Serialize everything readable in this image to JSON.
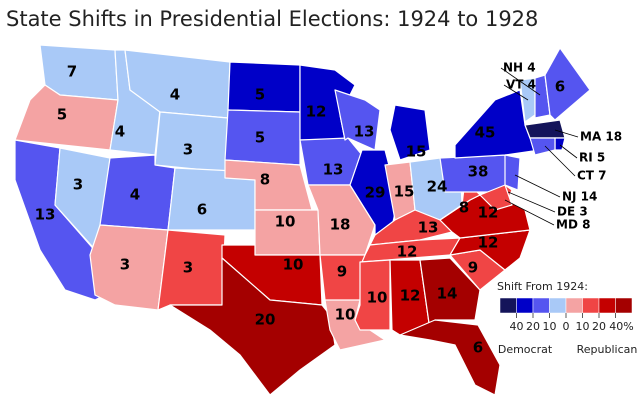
{
  "title": "State Shifts in Presidential Elections: 1924 to 1928",
  "regions": [
    {
      "label": "7",
      "color": "#a9c9f7"
    },
    {
      "label": "5",
      "color": "#f4a3a3"
    },
    {
      "label": "13",
      "color": "#5555f0"
    },
    {
      "label": "3",
      "color": "#a9c9f7"
    },
    {
      "label": "4",
      "color": "#a9c9f7"
    },
    {
      "label": "4",
      "color": "#a9c9f7"
    },
    {
      "label": "3",
      "color": "#a9c9f7"
    },
    {
      "label": "4",
      "color": "#5555f0"
    },
    {
      "label": "6",
      "color": "#a9c9f7"
    },
    {
      "label": "3",
      "color": "#f4a3a3"
    },
    {
      "label": "3",
      "color": "#f04545"
    },
    {
      "label": "5",
      "color": "#0000c8"
    },
    {
      "label": "5",
      "color": "#5555f0"
    },
    {
      "label": "8",
      "color": "#f4a3a3"
    },
    {
      "label": "10",
      "color": "#f4a3a3"
    },
    {
      "label": "10",
      "color": "#c40000"
    },
    {
      "label": "20",
      "color": "#a40000"
    },
    {
      "label": "12",
      "color": "#0000c8"
    },
    {
      "label": "13",
      "color": "#5555f0"
    },
    {
      "label": "18",
      "color": "#f4a3a3"
    },
    {
      "label": "9",
      "color": "#f04545"
    },
    {
      "label": "10",
      "color": "#f4a3a3"
    },
    {
      "label": "13",
      "color": "#5555f0"
    },
    {
      "label": "29",
      "color": "#0000c8"
    },
    {
      "label": "15",
      "color": "#0000c8"
    },
    {
      "label": "15",
      "color": "#f4a3a3"
    },
    {
      "label": "24",
      "color": "#a9c9f7"
    },
    {
      "label": "13",
      "color": "#f04545"
    },
    {
      "label": "12",
      "color": "#f04545"
    },
    {
      "label": "10",
      "color": "#f04545"
    },
    {
      "label": "12",
      "color": "#c40000"
    },
    {
      "label": "14",
      "color": "#a40000"
    },
    {
      "label": "6",
      "color": "#a40000"
    },
    {
      "label": "9",
      "color": "#f04545"
    },
    {
      "label": "12",
      "color": "#c40000"
    },
    {
      "label": "12",
      "color": "#c40000"
    },
    {
      "label": "8",
      "color": "#f04545"
    },
    {
      "label": "38",
      "color": "#5555f0"
    },
    {
      "label": "45",
      "color": "#0000c8"
    },
    {
      "label": "VT 4",
      "color": "#a9c9f7"
    },
    {
      "label": "NH 4",
      "color": "#5555f0"
    },
    {
      "label": "6",
      "color": "#5555f0"
    },
    {
      "label": "MA 18",
      "color": "#14145a"
    },
    {
      "label": "RI 5",
      "color": "#0000c8"
    },
    {
      "label": "CT 7",
      "color": "#5555f0"
    },
    {
      "label": "NJ 14",
      "color": "#5555f0"
    },
    {
      "label": "DE 3",
      "color": "#f04545"
    },
    {
      "label": "MD 8",
      "color": "#f04545"
    }
  ],
  "legend": {
    "title": "Shift From 1924:",
    "colors": [
      "#14145a",
      "#0000c8",
      "#5555f0",
      "#a9c9f7",
      "#f4a3a3",
      "#f04545",
      "#c40000",
      "#a40000"
    ],
    "ticks": [
      "40",
      "20",
      "10",
      "0",
      "10",
      "20",
      "40%"
    ],
    "left": "Democrat",
    "right": "Republican"
  }
}
